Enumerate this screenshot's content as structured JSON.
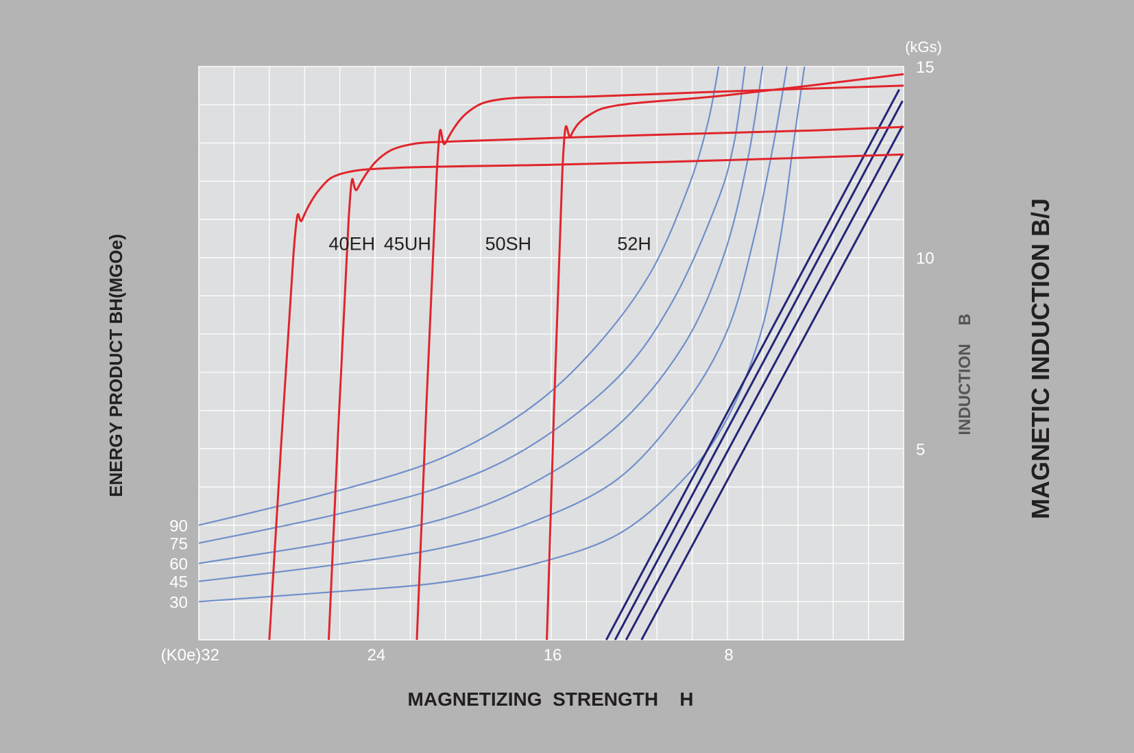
{
  "chart_data": {
    "type": "line",
    "x_axis": {
      "label": "MAGNETIZING  STRENGTH    H",
      "unit": "(K0e)",
      "reversed": true,
      "range": [
        32,
        0
      ],
      "ticks": [
        {
          "value": 32,
          "label": "(K0e)32"
        },
        {
          "value": 24,
          "label": "24"
        },
        {
          "value": 16,
          "label": "16"
        },
        {
          "value": 8,
          "label": "8"
        }
      ]
    },
    "y_axis_right": {
      "unit": "(kGs)",
      "range": [
        0,
        15
      ],
      "ticks": [
        {
          "value": 15,
          "label": "15"
        },
        {
          "value": 10,
          "label": "10"
        },
        {
          "value": 5,
          "label": "5"
        }
      ],
      "inner_label": "INDUCTION    B",
      "outer_label": "MAGNETIC INDUCTION B/J"
    },
    "y_axis_left": {
      "label": "ENERGY PRODUCT BH(MGOe)",
      "energy_ticks": [
        {
          "label": "90",
          "y_kgs": 3.0
        },
        {
          "label": "75",
          "y_kgs": 2.53
        },
        {
          "label": "60",
          "y_kgs": 2.0
        },
        {
          "label": "45",
          "y_kgs": 1.53
        },
        {
          "label": "30",
          "y_kgs": 1.0
        }
      ]
    },
    "grid": true,
    "grid_step": {
      "x": 1.6,
      "y": 1.0
    },
    "colors": {
      "background": "#b4b4b4",
      "plot_area": "#dedfe0",
      "grid": "#ffffff",
      "demag_curve": "#e0242b",
      "energy_curve": "#6f8fcb",
      "load_line": "#232677",
      "label_text": "#231f20",
      "tick_text": "#ffffff",
      "axis_title": "#231f20",
      "inner_title": "#555555"
    },
    "demag_curves": [
      {
        "name": "40EH",
        "label_at": [
          26.1,
          10.2
        ],
        "points": [
          [
            28.8,
            0
          ],
          [
            27.7,
            10.1
          ],
          [
            27.3,
            11.0
          ],
          [
            26.5,
            11.8
          ],
          [
            25.5,
            12.2
          ],
          [
            23,
            12.35
          ],
          [
            16,
            12.43
          ],
          [
            8,
            12.55
          ],
          [
            0,
            12.7
          ]
        ]
      },
      {
        "name": "45UH",
        "label_at": [
          23.6,
          10.2
        ],
        "points": [
          [
            26.1,
            0
          ],
          [
            25.2,
            11.0
          ],
          [
            24.8,
            11.8
          ],
          [
            23.8,
            12.6
          ],
          [
            22.5,
            12.95
          ],
          [
            20,
            13.05
          ],
          [
            12,
            13.2
          ],
          [
            4,
            13.33
          ],
          [
            0,
            13.42
          ]
        ]
      },
      {
        "name": "50SH",
        "label_at": [
          19.0,
          10.2
        ],
        "points": [
          [
            22.1,
            0
          ],
          [
            21.2,
            12.2
          ],
          [
            20.8,
            13.0
          ],
          [
            19.8,
            13.8
          ],
          [
            18.2,
            14.15
          ],
          [
            14,
            14.22
          ],
          [
            8,
            14.35
          ],
          [
            0,
            14.5
          ]
        ]
      },
      {
        "name": "52H",
        "label_at": [
          13.0,
          10.2
        ],
        "points": [
          [
            16.2,
            0
          ],
          [
            15.5,
            12.2
          ],
          [
            15.1,
            13.2
          ],
          [
            14.3,
            13.72
          ],
          [
            12.8,
            14.0
          ],
          [
            8,
            14.25
          ],
          [
            0,
            14.8
          ]
        ]
      }
    ],
    "energy_curves": [
      {
        "name": "30",
        "points": [
          [
            32,
            1.0
          ],
          [
            26,
            1.25
          ],
          [
            21,
            1.5
          ],
          [
            17,
            1.95
          ],
          [
            13,
            2.75
          ],
          [
            10,
            4.2
          ],
          [
            8,
            5.8
          ],
          [
            6.5,
            8.0
          ],
          [
            5.6,
            10.5
          ],
          [
            5.0,
            13.0
          ],
          [
            4.5,
            15.0
          ]
        ]
      },
      {
        "name": "45",
        "points": [
          [
            32,
            1.53
          ],
          [
            26,
            1.95
          ],
          [
            21,
            2.4
          ],
          [
            17,
            3.05
          ],
          [
            13,
            4.2
          ],
          [
            10,
            6.1
          ],
          [
            8,
            8.1
          ],
          [
            6.8,
            10.5
          ],
          [
            5.9,
            13.0
          ],
          [
            5.3,
            15.0
          ]
        ]
      },
      {
        "name": "60",
        "points": [
          [
            32,
            2.0
          ],
          [
            26,
            2.55
          ],
          [
            21,
            3.15
          ],
          [
            17,
            4.05
          ],
          [
            13,
            5.6
          ],
          [
            10,
            7.7
          ],
          [
            8.2,
            10.0
          ],
          [
            7.1,
            12.5
          ],
          [
            6.4,
            15.0
          ]
        ]
      },
      {
        "name": "75",
        "points": [
          [
            32,
            2.53
          ],
          [
            26,
            3.25
          ],
          [
            21,
            4.0
          ],
          [
            17,
            5.05
          ],
          [
            13,
            6.85
          ],
          [
            10.5,
            8.85
          ],
          [
            8.5,
            11.4
          ],
          [
            7.7,
            13.0
          ],
          [
            7.2,
            15.0
          ]
        ]
      },
      {
        "name": "90",
        "points": [
          [
            32,
            3.0
          ],
          [
            26,
            3.85
          ],
          [
            21,
            4.75
          ],
          [
            17,
            6.05
          ],
          [
            14,
            7.65
          ],
          [
            11.5,
            9.6
          ],
          [
            9.8,
            11.8
          ],
          [
            8.9,
            13.5
          ],
          [
            8.4,
            15.0
          ]
        ]
      }
    ],
    "load_lines": [
      {
        "points": [
          [
            13.5,
            0
          ],
          [
            0.2,
            14.4
          ]
        ]
      },
      {
        "points": [
          [
            13.1,
            0
          ],
          [
            0.05,
            14.1
          ]
        ]
      },
      {
        "points": [
          [
            12.6,
            0
          ],
          [
            0.05,
            13.45
          ]
        ]
      },
      {
        "points": [
          [
            11.9,
            0
          ],
          [
            0.05,
            12.7
          ]
        ]
      }
    ]
  }
}
